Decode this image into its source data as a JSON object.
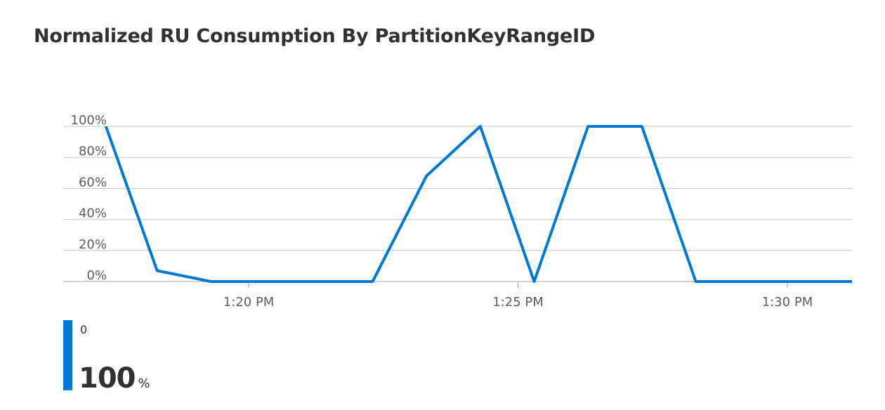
{
  "title": "Normalized RU Consumption By PartitionKeyRangeID",
  "chart_data": {
    "type": "line",
    "title": "Normalized RU Consumption By PartitionKeyRangeID",
    "xlabel": "",
    "ylabel": "",
    "x_range_minutes": [
      17.3,
      31.2
    ],
    "x_ticks": [
      {
        "minute": 20,
        "label": "1:20 PM"
      },
      {
        "minute": 25,
        "label": "1:25 PM"
      },
      {
        "minute": 30,
        "label": "1:30 PM"
      }
    ],
    "ylim": [
      0,
      100
    ],
    "y_ticks": [
      {
        "value": 0,
        "label": "0%"
      },
      {
        "value": 20,
        "label": "20%"
      },
      {
        "value": 40,
        "label": "40%"
      },
      {
        "value": 60,
        "label": "60%"
      },
      {
        "value": 80,
        "label": "80%"
      },
      {
        "value": 100,
        "label": "100%"
      }
    ],
    "grid": true,
    "series": [
      {
        "name": "0",
        "color": "#0078d4",
        "points": [
          {
            "minute": 17.35,
            "value": 100
          },
          {
            "minute": 18.3,
            "value": 7
          },
          {
            "minute": 19.3,
            "value": 0
          },
          {
            "minute": 22.3,
            "value": 0
          },
          {
            "minute": 23.3,
            "value": 68
          },
          {
            "minute": 23.55,
            "value": 76
          },
          {
            "minute": 24.3,
            "value": 100
          },
          {
            "minute": 25.3,
            "value": 0
          },
          {
            "minute": 26.3,
            "value": 100
          },
          {
            "minute": 27.3,
            "value": 100
          },
          {
            "minute": 28.3,
            "value": 0
          },
          {
            "minute": 31.2,
            "value": 0
          }
        ]
      }
    ]
  },
  "legend": {
    "name": "0",
    "value": "100",
    "unit": "%",
    "color": "#0078d4"
  }
}
